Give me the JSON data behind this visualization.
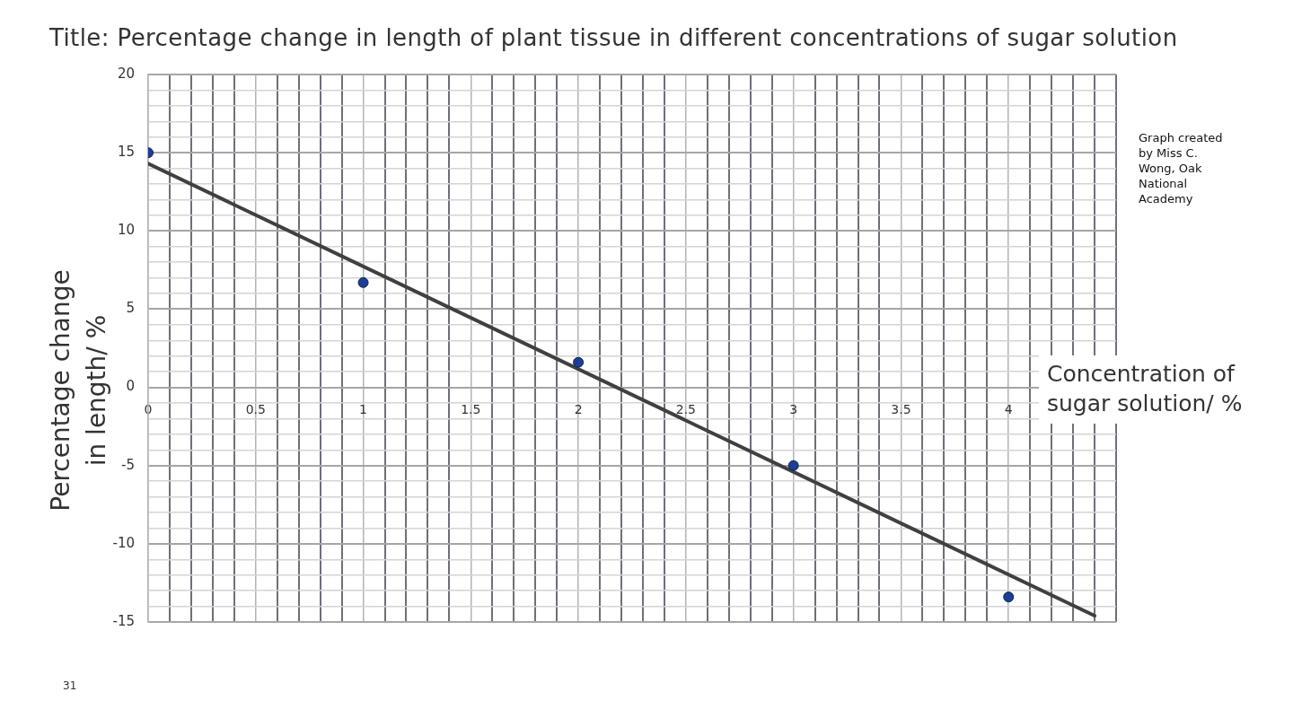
{
  "chart_data": {
    "type": "scatter",
    "title": "Title: Percentage change in length of plant tissue in different concentrations of sugar solution",
    "xlabel": "Concentration of sugar solution/ %",
    "ylabel": "Percentage change in length/ %",
    "annotations": [
      "Graph created by Miss C. Wong, Oak National Academy",
      "31"
    ],
    "series": [
      {
        "type": "scatter",
        "color": "#1c3f94",
        "marker": "circle",
        "x": [
          0,
          1,
          2,
          3,
          4
        ],
        "values": [
          15,
          6.7,
          1.6,
          -5,
          -13.4
        ]
      },
      {
        "type": "line",
        "color": "#404040",
        "marker": "none",
        "x": [
          0,
          4.4
        ],
        "values": [
          14.3,
          -14.6
        ]
      }
    ],
    "xlim": [
      0,
      4.5
    ],
    "xticks": [
      0,
      {
        "value": 0.1,
        "label": null
      },
      {
        "value": 0.2,
        "label": null
      },
      {
        "value": 0.3,
        "label": null
      },
      {
        "value": 0.4,
        "label": null
      },
      0.5,
      {
        "value": 0.6,
        "label": null
      },
      {
        "value": 0.7,
        "label": null
      },
      {
        "value": 0.8,
        "label": null
      },
      {
        "value": 0.9,
        "label": null
      },
      1,
      {
        "value": 1.1,
        "label": null
      },
      {
        "value": 1.2,
        "label": null
      },
      {
        "value": 1.3,
        "label": null
      },
      {
        "value": 1.4,
        "label": null
      },
      1.5,
      {
        "value": 1.6,
        "label": null
      },
      {
        "value": 1.7,
        "label": null
      },
      {
        "value": 1.8,
        "label": null
      },
      {
        "value": 1.9,
        "label": null
      },
      2,
      {
        "value": 2.1,
        "label": null
      },
      {
        "value": 2.2,
        "label": null
      },
      {
        "value": 2.3,
        "label": null
      },
      {
        "value": 2.4,
        "label": null
      },
      2.5,
      {
        "value": 2.6,
        "label": null
      },
      {
        "value": 2.7,
        "label": null
      },
      {
        "value": 2.8,
        "label": null
      },
      {
        "value": 2.9,
        "label": null
      },
      3,
      {
        "value": 3.1,
        "label": null
      },
      {
        "value": 3.2,
        "label": null
      },
      {
        "value": 3.3,
        "label": null
      },
      {
        "value": 3.4,
        "label": null
      },
      3.5,
      {
        "value": 3.6,
        "label": null
      },
      {
        "value": 3.7,
        "label": null
      },
      {
        "value": 3.8,
        "label": null
      },
      {
        "value": 3.9,
        "label": null
      },
      4,
      {
        "value": 4.1,
        "label": null
      },
      {
        "value": 4.2,
        "label": null
      },
      {
        "value": 4.3,
        "label": null
      },
      {
        "value": 4.4,
        "label": null
      },
      {
        "value": 4.5,
        "label": null
      }
    ],
    "ylim": [
      -15,
      20
    ],
    "yticks": [
      -15,
      {
        "value": -14,
        "label": null
      },
      {
        "value": -13,
        "label": null
      },
      {
        "value": -12,
        "label": null
      },
      {
        "value": -11,
        "label": null
      },
      -10,
      {
        "value": -9,
        "label": null
      },
      {
        "value": -8,
        "label": null
      },
      {
        "value": -7,
        "label": null
      },
      {
        "value": -6,
        "label": null
      },
      -5,
      {
        "value": -4,
        "label": null
      },
      {
        "value": -3,
        "label": null
      },
      {
        "value": -2,
        "label": null
      },
      {
        "value": -1,
        "label": null
      },
      0,
      {
        "value": 1,
        "label": null
      },
      {
        "value": 2,
        "label": null
      },
      {
        "value": 3,
        "label": null
      },
      {
        "value": 4,
        "label": null
      },
      5,
      {
        "value": 6,
        "label": null
      },
      {
        "value": 7,
        "label": null
      },
      {
        "value": 8,
        "label": null
      },
      {
        "value": 9,
        "label": null
      },
      10,
      {
        "value": 11,
        "label": null
      },
      {
        "value": 12,
        "label": null
      },
      {
        "value": 13,
        "label": null
      },
      {
        "value": 14,
        "label": null
      },
      15,
      {
        "value": 16,
        "label": null
      },
      {
        "value": 17,
        "label": null
      },
      {
        "value": 18,
        "label": null
      },
      {
        "value": 19,
        "label": null
      },
      20
    ],
    "grid": true
  }
}
